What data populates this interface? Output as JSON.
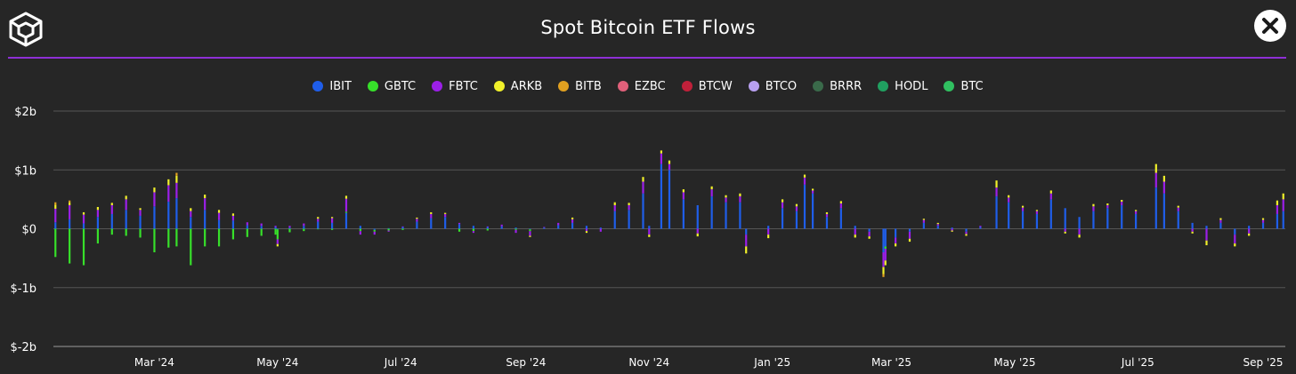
{
  "header": {
    "title": "Spot Bitcoin ETF Flows",
    "logo_icon": "cube-logo-icon",
    "close_icon": "close-icon",
    "accent_color": "#8e2fd6"
  },
  "chart_data": {
    "type": "bar",
    "stacked": true,
    "title": "Spot Bitcoin ETF Flows",
    "xlabel": "",
    "ylabel": "",
    "ylim": [
      -2,
      2
    ],
    "y_unit": "billion USD",
    "grid": true,
    "legend_position": "top-center",
    "y_ticks": [
      {
        "value": 2,
        "label": "$2b"
      },
      {
        "value": 1,
        "label": "$1b"
      },
      {
        "value": 0,
        "label": "$0"
      },
      {
        "value": -1,
        "label": "$-1b"
      },
      {
        "value": -2,
        "label": "$-2b"
      }
    ],
    "x_range": [
      "2024-01-11",
      "2025-09-12"
    ],
    "x_ticks": [
      {
        "date": "2024-03-01",
        "label": "Mar '24"
      },
      {
        "date": "2024-05-01",
        "label": "May '24"
      },
      {
        "date": "2024-07-01",
        "label": "Jul '24"
      },
      {
        "date": "2024-09-01",
        "label": "Sep '24"
      },
      {
        "date": "2024-11-01",
        "label": "Nov '24"
      },
      {
        "date": "2025-01-01",
        "label": "Jan '25"
      },
      {
        "date": "2025-03-01",
        "label": "Mar '25"
      },
      {
        "date": "2025-05-01",
        "label": "May '25"
      },
      {
        "date": "2025-07-01",
        "label": "Jul '25"
      },
      {
        "date": "2025-09-01",
        "label": "Sep '25"
      }
    ],
    "series": [
      {
        "name": "IBIT",
        "color": "#1f5eea"
      },
      {
        "name": "GBTC",
        "color": "#37e02a"
      },
      {
        "name": "FBTC",
        "color": "#9b1fe8"
      },
      {
        "name": "ARKB",
        "color": "#f0f02a"
      },
      {
        "name": "BITB",
        "color": "#e0a020"
      },
      {
        "name": "EZBC",
        "color": "#e0607a"
      },
      {
        "name": "BTCW",
        "color": "#c0203a"
      },
      {
        "name": "BTCO",
        "color": "#b8a0f0"
      },
      {
        "name": "BRRR",
        "color": "#3a6a4a"
      },
      {
        "name": "HODL",
        "color": "#20a060"
      },
      {
        "name": "BTC",
        "color": "#30c060"
      }
    ],
    "daily_flows": [
      {
        "date": "2024-01-12",
        "IBIT": 0.11,
        "GBTC": -0.48,
        "FBTC": 0.23,
        "ARKB": 0.07,
        "BITB": 0.04
      },
      {
        "date": "2024-01-19",
        "IBIT": 0.16,
        "GBTC": -0.59,
        "FBTC": 0.24,
        "ARKB": 0.05,
        "BITB": 0.03
      },
      {
        "date": "2024-01-26",
        "IBIT": 0.09,
        "GBTC": -0.62,
        "FBTC": 0.15,
        "ARKB": 0.04
      },
      {
        "date": "2024-02-02",
        "IBIT": 0.2,
        "GBTC": -0.25,
        "FBTC": 0.12,
        "ARKB": 0.05
      },
      {
        "date": "2024-02-09",
        "IBIT": 0.25,
        "GBTC": -0.1,
        "FBTC": 0.15,
        "ARKB": 0.04
      },
      {
        "date": "2024-02-16",
        "IBIT": 0.32,
        "GBTC": -0.12,
        "FBTC": 0.18,
        "ARKB": 0.06
      },
      {
        "date": "2024-02-23",
        "IBIT": 0.22,
        "GBTC": -0.15,
        "FBTC": 0.1,
        "ARKB": 0.03
      },
      {
        "date": "2024-03-01",
        "IBIT": 0.38,
        "GBTC": -0.4,
        "FBTC": 0.24,
        "ARKB": 0.08
      },
      {
        "date": "2024-03-08",
        "IBIT": 0.46,
        "GBTC": -0.32,
        "FBTC": 0.28,
        "ARKB": 0.1
      },
      {
        "date": "2024-03-12",
        "IBIT": 0.52,
        "GBTC": -0.3,
        "FBTC": 0.26,
        "ARKB": 0.12,
        "BITB": 0.05
      },
      {
        "date": "2024-03-19",
        "IBIT": 0.2,
        "GBTC": -0.62,
        "FBTC": 0.1,
        "ARKB": 0.05
      },
      {
        "date": "2024-03-26",
        "IBIT": 0.32,
        "GBTC": -0.3,
        "FBTC": 0.2,
        "ARKB": 0.06
      },
      {
        "date": "2024-04-02",
        "IBIT": 0.15,
        "GBTC": -0.3,
        "FBTC": 0.12,
        "ARKB": 0.05
      },
      {
        "date": "2024-04-09",
        "IBIT": 0.14,
        "GBTC": -0.18,
        "FBTC": 0.08,
        "ARKB": 0.04
      },
      {
        "date": "2024-04-16",
        "IBIT": 0.06,
        "GBTC": -0.14,
        "FBTC": 0.05
      },
      {
        "date": "2024-04-23",
        "IBIT": 0.05,
        "GBTC": -0.12,
        "FBTC": 0.04
      },
      {
        "date": "2024-04-30",
        "IBIT": 0.03,
        "GBTC": -0.1,
        "FBTC": 0.02
      },
      {
        "date": "2024-05-01",
        "IBIT": -0.01,
        "GBTC": -0.17,
        "FBTC": -0.08,
        "ARKB": -0.04
      },
      {
        "date": "2024-05-07",
        "IBIT": 0.02,
        "GBTC": -0.06,
        "FBTC": 0.03
      },
      {
        "date": "2024-05-14",
        "IBIT": 0.05,
        "GBTC": -0.04,
        "FBTC": 0.04
      },
      {
        "date": "2024-05-21",
        "IBIT": 0.12,
        "GBTC": -0.01,
        "FBTC": 0.05,
        "ARKB": 0.03
      },
      {
        "date": "2024-05-28",
        "IBIT": 0.1,
        "GBTC": -0.02,
        "FBTC": 0.08,
        "ARKB": 0.02
      },
      {
        "date": "2024-06-04",
        "IBIT": 0.27,
        "GBTC": 0.02,
        "FBTC": 0.22,
        "ARKB": 0.05
      },
      {
        "date": "2024-06-11",
        "IBIT": 0.05,
        "GBTC": -0.04,
        "FBTC": -0.06
      },
      {
        "date": "2024-06-18",
        "IBIT": -0.02,
        "GBTC": -0.03,
        "FBTC": -0.05
      },
      {
        "date": "2024-06-25",
        "IBIT": 0.01,
        "GBTC": -0.03,
        "FBTC": -0.02
      },
      {
        "date": "2024-07-02",
        "IBIT": 0.03,
        "GBTC": -0.02,
        "FBTC": 0.01
      },
      {
        "date": "2024-07-09",
        "IBIT": 0.12,
        "FBTC": 0.05,
        "ARKB": 0.02
      },
      {
        "date": "2024-07-16",
        "IBIT": 0.18,
        "FBTC": 0.07,
        "ARKB": 0.03
      },
      {
        "date": "2024-07-23",
        "IBIT": 0.2,
        "FBTC": 0.05,
        "ARKB": 0.02
      },
      {
        "date": "2024-07-30",
        "IBIT": 0.08,
        "GBTC": -0.05,
        "FBTC": 0.02
      },
      {
        "date": "2024-08-06",
        "IBIT": 0.05,
        "GBTC": -0.04,
        "FBTC": -0.03
      },
      {
        "date": "2024-08-13",
        "IBIT": 0.03,
        "GBTC": -0.03,
        "FBTC": 0.01
      },
      {
        "date": "2024-08-20",
        "IBIT": 0.04,
        "FBTC": 0.03
      },
      {
        "date": "2024-08-27",
        "IBIT": 0.02,
        "GBTC": -0.02,
        "FBTC": -0.05
      },
      {
        "date": "2024-09-03",
        "IBIT": -0.01,
        "GBTC": -0.03,
        "FBTC": -0.08,
        "ARKB": -0.02
      },
      {
        "date": "2024-09-10",
        "IBIT": 0.02,
        "FBTC": 0.01
      },
      {
        "date": "2024-09-17",
        "IBIT": 0.06,
        "FBTC": 0.04
      },
      {
        "date": "2024-09-24",
        "IBIT": 0.1,
        "FBTC": 0.06,
        "ARKB": 0.03
      },
      {
        "date": "2024-10-01",
        "IBIT": 0.05,
        "FBTC": -0.04,
        "ARKB": -0.03
      },
      {
        "date": "2024-10-08",
        "IBIT": 0.02,
        "FBTC": -0.05
      },
      {
        "date": "2024-10-15",
        "IBIT": 0.3,
        "FBTC": 0.1,
        "ARKB": 0.05
      },
      {
        "date": "2024-10-22",
        "IBIT": 0.32,
        "FBTC": 0.08,
        "ARKB": 0.04
      },
      {
        "date": "2024-10-29",
        "IBIT": 0.6,
        "FBTC": 0.2,
        "ARKB": 0.08
      },
      {
        "date": "2024-11-01",
        "IBIT": 0.05,
        "FBTC": -0.1,
        "ARKB": -0.04
      },
      {
        "date": "2024-11-07",
        "IBIT": 1.1,
        "FBTC": 0.18,
        "ARKB": 0.05
      },
      {
        "date": "2024-11-11",
        "IBIT": 1.0,
        "FBTC": 0.1,
        "ARKB": 0.06
      },
      {
        "date": "2024-11-18",
        "IBIT": 0.5,
        "FBTC": 0.12,
        "ARKB": 0.05
      },
      {
        "date": "2024-11-25",
        "IBIT": 0.4,
        "FBTC": -0.08,
        "ARKB": -0.05
      },
      {
        "date": "2024-12-02",
        "IBIT": 0.55,
        "FBTC": 0.12,
        "ARKB": 0.05
      },
      {
        "date": "2024-12-09",
        "IBIT": 0.45,
        "FBTC": 0.08,
        "ARKB": 0.04
      },
      {
        "date": "2024-12-16",
        "IBIT": 0.45,
        "FBTC": 0.1,
        "ARKB": 0.05
      },
      {
        "date": "2024-12-19",
        "IBIT": -0.1,
        "FBTC": -0.2,
        "ARKB": -0.12
      },
      {
        "date": "2024-12-30",
        "IBIT": 0.05,
        "FBTC": -0.1,
        "ARKB": -0.06
      },
      {
        "date": "2025-01-06",
        "IBIT": 0.35,
        "FBTC": 0.1,
        "ARKB": 0.05
      },
      {
        "date": "2025-01-13",
        "IBIT": 0.3,
        "FBTC": 0.08,
        "ARKB": 0.04
      },
      {
        "date": "2025-01-17",
        "IBIT": 0.75,
        "FBTC": 0.12,
        "ARKB": 0.05
      },
      {
        "date": "2025-01-21",
        "IBIT": 0.6,
        "FBTC": 0.05,
        "ARKB": 0.03
      },
      {
        "date": "2025-01-28",
        "IBIT": 0.2,
        "FBTC": 0.05,
        "ARKB": 0.03
      },
      {
        "date": "2025-02-04",
        "IBIT": 0.35,
        "FBTC": 0.08,
        "ARKB": 0.04
      },
      {
        "date": "2025-02-11",
        "IBIT": 0.05,
        "FBTC": -0.1,
        "ARKB": -0.05
      },
      {
        "date": "2025-02-18",
        "IBIT": -0.05,
        "FBTC": -0.08,
        "ARKB": -0.04
      },
      {
        "date": "2025-02-25",
        "IBIT": -0.4,
        "FBTC": -0.25,
        "ARKB": -0.12,
        "BITB": -0.05
      },
      {
        "date": "2025-02-26",
        "IBIT": -0.3,
        "FBTC": -0.2,
        "ARKB": -0.08,
        "GBTC": -0.04
      },
      {
        "date": "2025-03-03",
        "IBIT": -0.15,
        "FBTC": -0.1,
        "ARKB": -0.05
      },
      {
        "date": "2025-03-10",
        "IBIT": -0.05,
        "FBTC": -0.12,
        "ARKB": -0.05
      },
      {
        "date": "2025-03-17",
        "IBIT": 0.1,
        "FBTC": 0.05,
        "ARKB": 0.02
      },
      {
        "date": "2025-03-24",
        "IBIT": 0.05,
        "FBTC": 0.03,
        "ARKB": 0.02
      },
      {
        "date": "2025-03-31",
        "IBIT": 0.02,
        "FBTC": -0.03,
        "ARKB": -0.02
      },
      {
        "date": "2025-04-07",
        "IBIT": -0.05,
        "FBTC": -0.04,
        "ARKB": -0.03
      },
      {
        "date": "2025-04-14",
        "IBIT": 0.03,
        "FBTC": 0.02
      },
      {
        "date": "2025-04-22",
        "IBIT": 0.55,
        "FBTC": 0.15,
        "ARKB": 0.12
      },
      {
        "date": "2025-04-28",
        "IBIT": 0.45,
        "FBTC": 0.08,
        "ARKB": 0.04
      },
      {
        "date": "2025-05-05",
        "IBIT": 0.3,
        "FBTC": 0.06,
        "ARKB": 0.03
      },
      {
        "date": "2025-05-12",
        "IBIT": 0.25,
        "FBTC": 0.05,
        "ARKB": 0.02
      },
      {
        "date": "2025-05-19",
        "IBIT": 0.5,
        "FBTC": 0.1,
        "ARKB": 0.05
      },
      {
        "date": "2025-05-26",
        "IBIT": 0.35,
        "FBTC": -0.05,
        "ARKB": -0.03
      },
      {
        "date": "2025-06-02",
        "IBIT": 0.2,
        "FBTC": -0.1,
        "ARKB": -0.05
      },
      {
        "date": "2025-06-09",
        "IBIT": 0.3,
        "FBTC": 0.08,
        "ARKB": 0.04
      },
      {
        "date": "2025-06-16",
        "IBIT": 0.35,
        "FBTC": 0.05,
        "ARKB": 0.03
      },
      {
        "date": "2025-06-23",
        "IBIT": 0.4,
        "FBTC": 0.06,
        "ARKB": 0.03
      },
      {
        "date": "2025-06-30",
        "IBIT": 0.25,
        "FBTC": 0.05,
        "ARKB": 0.02
      },
      {
        "date": "2025-07-10",
        "IBIT": 0.7,
        "FBTC": 0.25,
        "ARKB": 0.15
      },
      {
        "date": "2025-07-14",
        "IBIT": 0.6,
        "FBTC": 0.2,
        "ARKB": 0.1
      },
      {
        "date": "2025-07-21",
        "IBIT": 0.3,
        "FBTC": 0.06,
        "ARKB": 0.03
      },
      {
        "date": "2025-07-28",
        "IBIT": 0.1,
        "FBTC": -0.05,
        "ARKB": -0.03
      },
      {
        "date": "2025-08-04",
        "IBIT": 0.05,
        "FBTC": -0.2,
        "ARKB": -0.08
      },
      {
        "date": "2025-08-11",
        "IBIT": 0.1,
        "FBTC": 0.05,
        "ARKB": 0.03
      },
      {
        "date": "2025-08-18",
        "IBIT": -0.1,
        "FBTC": -0.15,
        "ARKB": -0.05
      },
      {
        "date": "2025-08-25",
        "IBIT": 0.05,
        "FBTC": -0.08,
        "ARKB": -0.04
      },
      {
        "date": "2025-09-01",
        "IBIT": 0.1,
        "FBTC": 0.05,
        "ARKB": 0.03
      },
      {
        "date": "2025-09-08",
        "IBIT": 0.25,
        "FBTC": 0.15,
        "ARKB": 0.08
      },
      {
        "date": "2025-09-11",
        "IBIT": 0.3,
        "FBTC": 0.2,
        "ARKB": 0.1
      }
    ]
  }
}
